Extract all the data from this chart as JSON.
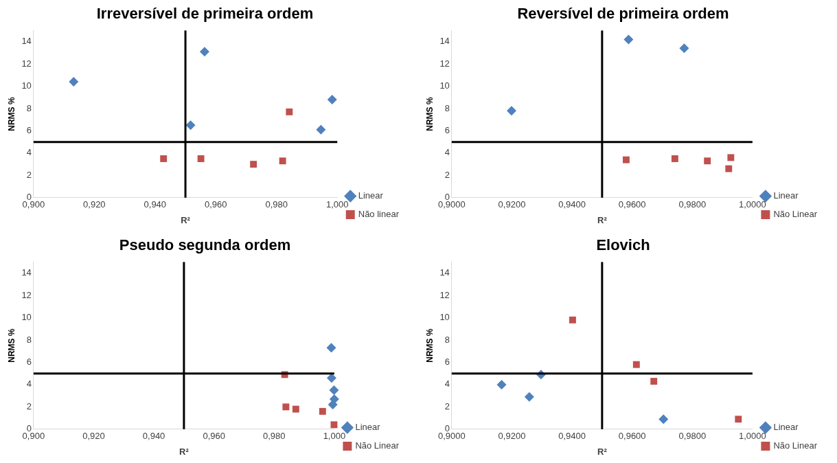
{
  "chart_data": [
    {
      "type": "scatter",
      "title": "Irreversível de primeira ordem",
      "xlabel": "R²",
      "ylabel": "NRMS %",
      "xlim": [
        0.9,
        1.0
      ],
      "ylim": [
        0,
        15
      ],
      "xticks": [
        {
          "value": 0.9,
          "label": "0,900"
        },
        {
          "value": 0.92,
          "label": "0,920"
        },
        {
          "value": 0.94,
          "label": "0,940"
        },
        {
          "value": 0.96,
          "label": "0,960"
        },
        {
          "value": 0.98,
          "label": "0,980"
        },
        {
          "value": 1.0,
          "label": "1,000"
        }
      ],
      "yticks": [
        0,
        2,
        4,
        6,
        8,
        10,
        12,
        14
      ],
      "grid": false,
      "legend": "right",
      "ref_lines": [
        {
          "axis": "x",
          "value": 0.95,
          "color": "#000000"
        },
        {
          "axis": "y",
          "value": 5,
          "color": "#000000"
        }
      ],
      "series": [
        {
          "name": "Linear",
          "color": "#4f81bd",
          "marker": "diamond",
          "x": [
            0.9132,
            0.9563,
            0.9517,
            0.9946,
            0.9983
          ],
          "values": [
            10.4,
            13.1,
            6.5,
            6.1,
            8.8
          ]
        },
        {
          "name": "Não linear",
          "color": "#c0504d",
          "marker": "square",
          "x": [
            0.9428,
            0.9551,
            0.9724,
            0.982,
            0.9842
          ],
          "values": [
            3.5,
            3.5,
            3.0,
            3.3,
            7.7
          ]
        }
      ]
    },
    {
      "type": "scatter",
      "title": "Reversível de primeira ordem",
      "xlabel": "R²",
      "ylabel": "NRMS %",
      "xlim": [
        0.9,
        1.0
      ],
      "ylim": [
        0,
        15
      ],
      "xticks": [
        {
          "value": 0.9,
          "label": "0,9000"
        },
        {
          "value": 0.92,
          "label": "0,9200"
        },
        {
          "value": 0.94,
          "label": "0,9400"
        },
        {
          "value": 0.96,
          "label": "0,9600"
        },
        {
          "value": 0.98,
          "label": "0,9800"
        },
        {
          "value": 1.0,
          "label": "1,0000"
        }
      ],
      "yticks": [
        0,
        2,
        4,
        6,
        8,
        10,
        12,
        14
      ],
      "grid": false,
      "legend": "right",
      "ref_lines": [
        {
          "axis": "x",
          "value": 0.95,
          "color": "#000000"
        },
        {
          "axis": "y",
          "value": 5,
          "color": "#000000"
        }
      ],
      "series": [
        {
          "name": "Linear",
          "color": "#4f81bd",
          "marker": "diamond",
          "x": [
            0.9199,
            0.9588,
            0.9773
          ],
          "values": [
            7.8,
            14.2,
            13.4
          ]
        },
        {
          "name": "Não Linear",
          "color": "#c0504d",
          "marker": "square",
          "x": [
            0.958,
            0.9742,
            0.985,
            0.9928,
            0.9921
          ],
          "values": [
            3.4,
            3.5,
            3.3,
            3.6,
            2.6
          ]
        }
      ]
    },
    {
      "type": "scatter",
      "title": "Pseudo segunda ordem",
      "xlabel": "R²",
      "ylabel": "NRMS %",
      "xlim": [
        0.9,
        1.0
      ],
      "ylim": [
        0,
        15
      ],
      "xticks": [
        {
          "value": 0.9,
          "label": "0,900"
        },
        {
          "value": 0.92,
          "label": "0,920"
        },
        {
          "value": 0.94,
          "label": "0,940"
        },
        {
          "value": 0.96,
          "label": "0,960"
        },
        {
          "value": 0.98,
          "label": "0,980"
        },
        {
          "value": 1.0,
          "label": "1,000"
        }
      ],
      "yticks": [
        0,
        2,
        4,
        6,
        8,
        10,
        12,
        14
      ],
      "grid": false,
      "legend": "right",
      "ref_lines": [
        {
          "axis": "x",
          "value": 0.95,
          "color": "#000000"
        },
        {
          "axis": "y",
          "value": 5,
          "color": "#000000"
        }
      ],
      "series": [
        {
          "name": "Linear",
          "color": "#4f81bd",
          "marker": "diamond",
          "x": [
            0.999,
            0.9991,
            0.9999,
            1.0,
            0.9995
          ],
          "values": [
            7.3,
            4.6,
            3.5,
            2.7,
            2.2
          ]
        },
        {
          "name": "Não Linear",
          "color": "#c0504d",
          "marker": "square",
          "x": [
            0.9835,
            0.9839,
            0.9872,
            0.9961,
            0.9999
          ],
          "values": [
            4.9,
            2.0,
            1.8,
            1.6,
            0.4
          ]
        }
      ]
    },
    {
      "type": "scatter",
      "title": "Elovich",
      "xlabel": "R²",
      "ylabel": "NRMS %",
      "xlim": [
        0.9,
        1.0
      ],
      "ylim": [
        0,
        15
      ],
      "xticks": [
        {
          "value": 0.9,
          "label": "0,9000"
        },
        {
          "value": 0.92,
          "label": "0,9200"
        },
        {
          "value": 0.94,
          "label": "0,9400"
        },
        {
          "value": 0.96,
          "label": "0,9600"
        },
        {
          "value": 0.98,
          "label": "0,9800"
        },
        {
          "value": 1.0,
          "label": "1,0000"
        }
      ],
      "yticks": [
        0,
        2,
        4,
        6,
        8,
        10,
        12,
        14
      ],
      "grid": false,
      "legend": "right",
      "ref_lines": [
        {
          "axis": "x",
          "value": 0.95,
          "color": "#000000"
        },
        {
          "axis": "y",
          "value": 5,
          "color": "#000000"
        }
      ],
      "series": [
        {
          "name": "Linear",
          "color": "#4f81bd",
          "marker": "diamond",
          "x": [
            0.9166,
            0.9258,
            0.9297,
            0.9704
          ],
          "values": [
            4.0,
            2.9,
            4.9,
            0.9
          ]
        },
        {
          "name": "Não Linear",
          "color": "#c0504d",
          "marker": "square",
          "x": [
            0.9402,
            0.9614,
            0.9672,
            0.9953
          ],
          "values": [
            9.8,
            5.8,
            4.3,
            0.9
          ]
        }
      ]
    }
  ]
}
